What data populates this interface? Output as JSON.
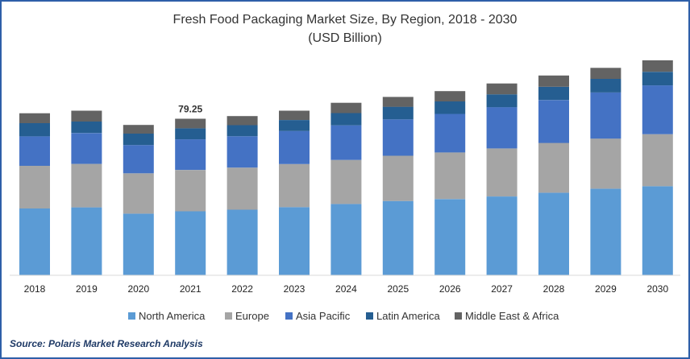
{
  "chart_data": {
    "type": "bar",
    "stacked": true,
    "title": "Fresh Food Packaging Market Size, By Region, 2018 - 2030",
    "subtitle": "(USD Billion)",
    "categories": [
      "2018",
      "2019",
      "2020",
      "2021",
      "2022",
      "2023",
      "2024",
      "2025",
      "2026",
      "2027",
      "2028",
      "2029",
      "2030"
    ],
    "series": [
      {
        "name": "North America",
        "color": "#5b9bd5",
        "values": [
          33.8,
          34.4,
          31.2,
          32.4,
          33.2,
          34.5,
          36.1,
          37.6,
          38.6,
          39.9,
          41.8,
          43.8,
          45.1
        ]
      },
      {
        "name": "Europe",
        "color": "#a5a5a5",
        "values": [
          21.6,
          22.0,
          20.4,
          20.9,
          21.3,
          21.8,
          22.3,
          22.9,
          23.6,
          24.3,
          25.2,
          25.4,
          26.3
        ]
      },
      {
        "name": "Asia Pacific",
        "color": "#4472c4",
        "values": [
          14.9,
          15.6,
          14.3,
          15.5,
          15.9,
          16.7,
          17.5,
          18.4,
          19.5,
          20.9,
          21.7,
          23.3,
          24.7
        ]
      },
      {
        "name": "Latin America",
        "color": "#255e91",
        "values": [
          6.7,
          5.8,
          5.8,
          5.6,
          5.6,
          5.6,
          6.2,
          6.4,
          6.3,
          6.5,
          6.7,
          6.9,
          6.9
        ]
      },
      {
        "name": "Middle East & Africa",
        "color": "#636363",
        "values": [
          5.0,
          5.5,
          4.4,
          4.85,
          4.6,
          4.7,
          5.2,
          5.0,
          5.2,
          5.5,
          5.7,
          5.6,
          5.8
        ]
      }
    ],
    "annotations": [
      {
        "category": "2021",
        "text": "79.25"
      }
    ],
    "ylim": [
      0,
      110
    ],
    "xlabel": "",
    "ylabel": "",
    "grid": false,
    "legend_position": "bottom"
  },
  "source": "Source: Polaris  Market Research Analysis"
}
